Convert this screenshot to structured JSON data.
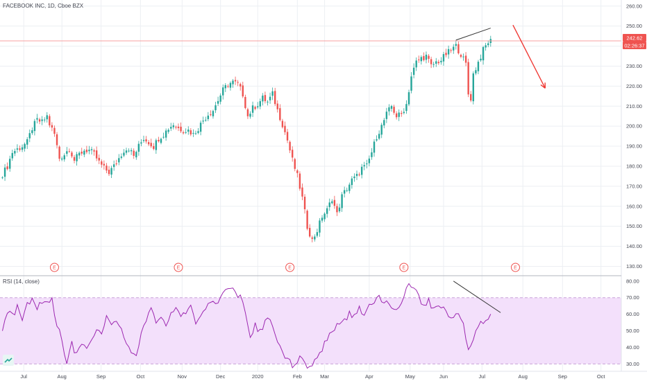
{
  "header": {
    "title": "FACEBOOK INC, 1D, Cboe BZX"
  },
  "price_tags": {
    "last": "242.62",
    "countdown": "02:26:37"
  },
  "rsi_panel": {
    "title": "RSI (14, close)"
  },
  "colors": {
    "up": "#26a69a",
    "down": "#ef5350",
    "rsi": "#9c27b0",
    "band": "#f3e0fb",
    "grid": "#eceff3",
    "arrow": "#ef3a35",
    "trend": "#333333"
  },
  "earnings": [
    "E",
    "E",
    "E",
    "E",
    "E"
  ],
  "chart_data": [
    {
      "type": "candlestick",
      "title": "FACEBOOK INC, 1D, Cboe BZX",
      "ylim": [
        126,
        262
      ],
      "yticks": [
        "260.00",
        "250.00",
        "240.00",
        "230.00",
        "220.00",
        "210.00",
        "200.00",
        "190.00",
        "180.00",
        "170.00",
        "160.00",
        "150.00",
        "140.00",
        "130.00"
      ],
      "xticks": [
        "Jul",
        "Aug",
        "Sep",
        "Oct",
        "Nov",
        "Dec",
        "2020",
        "Feb",
        "Mar",
        "Apr",
        "May",
        "Jun",
        "Jul",
        "Aug",
        "Sep",
        "Oct"
      ],
      "last_price": 242.62,
      "price_path": [
        [
          0,
          176
        ],
        [
          2,
          180
        ],
        [
          4,
          187
        ],
        [
          8,
          190
        ],
        [
          10,
          192
        ],
        [
          12,
          199
        ],
        [
          14,
          203
        ],
        [
          16,
          202
        ],
        [
          18,
          205
        ],
        [
          19,
          201
        ],
        [
          21,
          196
        ],
        [
          23,
          184
        ],
        [
          25,
          186
        ],
        [
          27,
          189
        ],
        [
          29,
          183
        ],
        [
          31,
          186
        ],
        [
          33,
          188
        ],
        [
          35,
          188
        ],
        [
          37,
          186
        ],
        [
          39,
          182
        ],
        [
          41,
          179
        ],
        [
          43,
          177
        ],
        [
          45,
          180
        ],
        [
          47,
          184
        ],
        [
          49,
          188
        ],
        [
          51,
          189
        ],
        [
          53,
          185
        ],
        [
          55,
          190
        ],
        [
          57,
          194
        ],
        [
          59,
          192
        ],
        [
          61,
          190
        ],
        [
          63,
          194
        ],
        [
          65,
          196
        ],
        [
          67,
          199
        ],
        [
          69,
          201
        ],
        [
          71,
          199
        ],
        [
          73,
          198
        ],
        [
          75,
          198
        ],
        [
          77,
          196
        ],
        [
          79,
          199
        ],
        [
          81,
          203
        ],
        [
          83,
          206
        ],
        [
          85,
          208
        ],
        [
          87,
          213
        ],
        [
          89,
          218
        ],
        [
          91,
          221
        ],
        [
          93,
          222
        ],
        [
          95,
          221
        ],
        [
          97,
          216
        ],
        [
          99,
          205
        ],
        [
          101,
          209
        ],
        [
          103,
          211
        ],
        [
          105,
          214
        ],
        [
          107,
          212
        ],
        [
          109,
          216
        ],
        [
          111,
          208
        ],
        [
          113,
          201
        ],
        [
          115,
          193
        ],
        [
          117,
          183
        ],
        [
          119,
          175
        ],
        [
          121,
          164
        ],
        [
          123,
          150
        ],
        [
          125,
          143
        ],
        [
          127,
          148
        ],
        [
          129,
          155
        ],
        [
          131,
          158
        ],
        [
          133,
          164
        ],
        [
          135,
          156
        ],
        [
          137,
          165
        ],
        [
          139,
          169
        ],
        [
          141,
          173
        ],
        [
          143,
          175
        ],
        [
          145,
          179
        ],
        [
          147,
          180
        ],
        [
          149,
          187
        ],
        [
          151,
          195
        ],
        [
          153,
          200
        ],
        [
          155,
          206
        ],
        [
          157,
          210
        ],
        [
          159,
          205
        ],
        [
          161,
          206
        ],
        [
          163,
          211
        ],
        [
          165,
          225
        ],
        [
          167,
          232
        ],
        [
          169,
          234
        ],
        [
          171,
          235
        ],
        [
          173,
          230
        ],
        [
          175,
          232
        ],
        [
          177,
          233
        ],
        [
          179,
          236
        ],
        [
          181,
          238
        ],
        [
          183,
          240
        ],
        [
          185,
          236
        ],
        [
          187,
          231
        ],
        [
          188,
          216
        ],
        [
          189,
          214
        ],
        [
          190,
          226
        ],
        [
          192,
          232
        ],
        [
          194,
          238
        ],
        [
          196,
          242
        ],
        [
          197,
          242.6
        ]
      ],
      "annotations": {
        "resistance_line": {
          "from": [
            183,
            243
          ],
          "to": [
            197,
            249
          ]
        },
        "last_price_line": 242.62,
        "forecast_arrow": {
          "from": [
            206,
            250.5
          ],
          "to": [
            219,
            219
          ]
        }
      }
    },
    {
      "type": "line",
      "title": "RSI (14, close)",
      "ylim": [
        26,
        82
      ],
      "yticks": [
        "80.00",
        "70.00",
        "60.00",
        "50.00",
        "40.00",
        "30.00"
      ],
      "band": [
        30,
        70
      ],
      "values": [
        [
          0,
          52
        ],
        [
          2,
          62
        ],
        [
          4,
          59
        ],
        [
          6,
          64
        ],
        [
          8,
          58
        ],
        [
          10,
          67
        ],
        [
          12,
          69
        ],
        [
          14,
          64
        ],
        [
          16,
          68
        ],
        [
          18,
          66
        ],
        [
          20,
          68
        ],
        [
          22,
          54
        ],
        [
          24,
          44
        ],
        [
          26,
          31
        ],
        [
          28,
          42
        ],
        [
          30,
          35
        ],
        [
          32,
          41
        ],
        [
          34,
          38
        ],
        [
          36,
          45
        ],
        [
          38,
          52
        ],
        [
          40,
          48
        ],
        [
          42,
          58
        ],
        [
          44,
          53
        ],
        [
          46,
          57
        ],
        [
          48,
          50
        ],
        [
          50,
          42
        ],
        [
          52,
          38
        ],
        [
          54,
          34
        ],
        [
          56,
          47
        ],
        [
          58,
          56
        ],
        [
          60,
          62
        ],
        [
          62,
          55
        ],
        [
          64,
          60
        ],
        [
          66,
          52
        ],
        [
          68,
          62
        ],
        [
          70,
          65
        ],
        [
          72,
          58
        ],
        [
          74,
          62
        ],
        [
          76,
          66
        ],
        [
          78,
          56
        ],
        [
          80,
          60
        ],
        [
          82,
          63
        ],
        [
          84,
          66
        ],
        [
          86,
          67
        ],
        [
          88,
          70
        ],
        [
          90,
          73
        ],
        [
          92,
          76
        ],
        [
          94,
          72
        ],
        [
          96,
          70
        ],
        [
          98,
          62
        ],
        [
          100,
          47
        ],
        [
          102,
          53
        ],
        [
          104,
          50
        ],
        [
          106,
          55
        ],
        [
          108,
          58
        ],
        [
          110,
          48
        ],
        [
          112,
          40
        ],
        [
          114,
          35
        ],
        [
          116,
          31
        ],
        [
          118,
          28
        ],
        [
          120,
          33
        ],
        [
          122,
          30
        ],
        [
          124,
          27
        ],
        [
          126,
          32
        ],
        [
          128,
          36
        ],
        [
          130,
          42
        ],
        [
          132,
          48
        ],
        [
          134,
          52
        ],
        [
          136,
          54
        ],
        [
          138,
          57
        ],
        [
          140,
          60
        ],
        [
          142,
          58
        ],
        [
          144,
          64
        ],
        [
          146,
          60
        ],
        [
          148,
          66
        ],
        [
          150,
          67
        ],
        [
          152,
          70
        ],
        [
          154,
          68
        ],
        [
          156,
          66
        ],
        [
          158,
          62
        ],
        [
          160,
          64
        ],
        [
          162,
          72
        ],
        [
          164,
          78
        ],
        [
          166,
          76
        ],
        [
          168,
          70
        ],
        [
          170,
          66
        ],
        [
          172,
          68
        ],
        [
          174,
          62
        ],
        [
          176,
          66
        ],
        [
          178,
          63
        ],
        [
          180,
          60
        ],
        [
          182,
          58
        ],
        [
          184,
          62
        ],
        [
          186,
          56
        ],
        [
          187,
          44
        ],
        [
          188,
          40
        ],
        [
          190,
          46
        ],
        [
          192,
          52
        ],
        [
          194,
          56
        ],
        [
          196,
          58
        ],
        [
          197,
          59
        ]
      ],
      "annotations": {
        "divergence_line": {
          "from": [
            182,
            80
          ],
          "to": [
            201,
            61
          ]
        }
      }
    }
  ]
}
